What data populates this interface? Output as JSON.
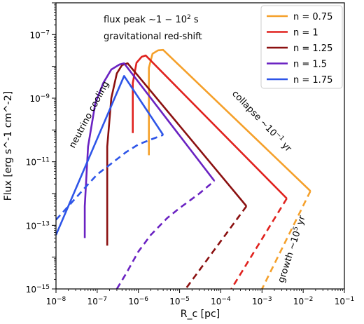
{
  "chart_data": {
    "type": "line",
    "title": "",
    "xlabel": "R_c [pc]",
    "ylabel": "Flux [erg s^-1 cm^-2]",
    "x_scale": "log",
    "y_scale": "log",
    "xlim": [
      1e-08,
      0.1
    ],
    "ylim": [
      1e-15,
      1e-06
    ],
    "x_tick_labels": [
      "10^-8",
      "10^-7",
      "10^-6",
      "10^-5",
      "10^-4",
      "10^-3",
      "10^-2",
      "10^-1"
    ],
    "y_tick_labels": [
      "10^-15",
      "10^-13",
      "10^-11",
      "10^-9",
      "10^-7"
    ],
    "grid": false,
    "legend_position": "top-right",
    "series": [
      {
        "name": "n = 0.75",
        "color": "#f5a02a",
        "solid": [
          [
            1.8e-06,
            1.6e-11
          ],
          [
            1.8e-06,
            9e-09
          ],
          [
            2.2e-06,
            2.5e-08
          ],
          [
            3e-06,
            3.2e-08
          ],
          [
            4e-06,
            3.3e-08
          ],
          [
            0.015,
            1.2e-12
          ]
        ],
        "dashed": [
          [
            0.015,
            1.2e-12
          ],
          [
            0.001,
            1e-15
          ]
        ]
      },
      {
        "name": "n = 1",
        "color": "#e0221e",
        "solid": [
          [
            7.3e-07,
            8e-11
          ],
          [
            7.3e-07,
            3e-09
          ],
          [
            9e-07,
            1.3e-08
          ],
          [
            1.2e-06,
            2e-08
          ],
          [
            1.5e-06,
            2.2e-08
          ],
          [
            0.004,
            7e-13
          ]
        ],
        "dashed": [
          [
            0.004,
            7e-13
          ],
          [
            0.00018,
            1e-15
          ]
        ]
      },
      {
        "name": "n = 1.25",
        "color": "#8b1010",
        "solid": [
          [
            1.75e-07,
            2.3e-14
          ],
          [
            1.75e-07,
            3e-11
          ],
          [
            2.2e-07,
            1e-09
          ],
          [
            3e-07,
            6e-09
          ],
          [
            4e-07,
            1.1e-08
          ],
          [
            5.5e-07,
            1.25e-08
          ],
          [
            0.00042,
            4e-13
          ]
        ],
        "dashed": [
          [
            0.00042,
            4e-13
          ],
          [
            1.4e-05,
            1e-15
          ]
        ]
      },
      {
        "name": "n = 1.5",
        "color": "#6a22c2",
        "solid": [
          [
            5e-08,
            4e-14
          ],
          [
            5e-08,
            4e-13
          ],
          [
            6e-08,
            3e-11
          ],
          [
            9e-08,
            7e-10
          ],
          [
            1.4e-07,
            3e-09
          ],
          [
            2.2e-07,
            8e-09
          ],
          [
            3.5e-07,
            1.15e-08
          ],
          [
            4.5e-07,
            1.25e-08
          ],
          [
            7e-05,
            2.5e-12
          ]
        ],
        "dashed": [
          [
            3e-07,
            1e-15
          ],
          [
            5e-07,
            3e-15
          ],
          [
            1e-06,
            1.5e-14
          ],
          [
            2e-06,
            5e-14
          ],
          [
            5e-06,
            1.7e-13
          ],
          [
            1e-05,
            3.5e-13
          ],
          [
            3e-05,
            1e-12
          ],
          [
            7e-05,
            2.5e-12
          ]
        ]
      },
      {
        "name": "n = 1.75",
        "color": "#2e55e8",
        "solid": [
          [
            1e-08,
            5e-14
          ],
          [
            4.5e-07,
            5e-09
          ],
          [
            4e-06,
            7e-11
          ]
        ],
        "dashed": [
          [
            1e-08,
            1.5e-13
          ],
          [
            2e-08,
            4e-13
          ],
          [
            5e-08,
            1.5e-12
          ],
          [
            1e-07,
            4e-12
          ],
          [
            2e-07,
            8e-12
          ],
          [
            5e-07,
            2e-11
          ],
          [
            1e-06,
            3.5e-11
          ],
          [
            2e-06,
            5e-11
          ],
          [
            4e-06,
            7e-11
          ]
        ]
      }
    ],
    "annotations": {
      "flux_peak": "flux peak  ~1 − 10^2 s",
      "redshift": "gravitational red-shift",
      "neutrino": "neutrino cooling",
      "collapse": "collapse  ~10^-1 yr",
      "growth": "growth  ~10^5 yr"
    }
  }
}
